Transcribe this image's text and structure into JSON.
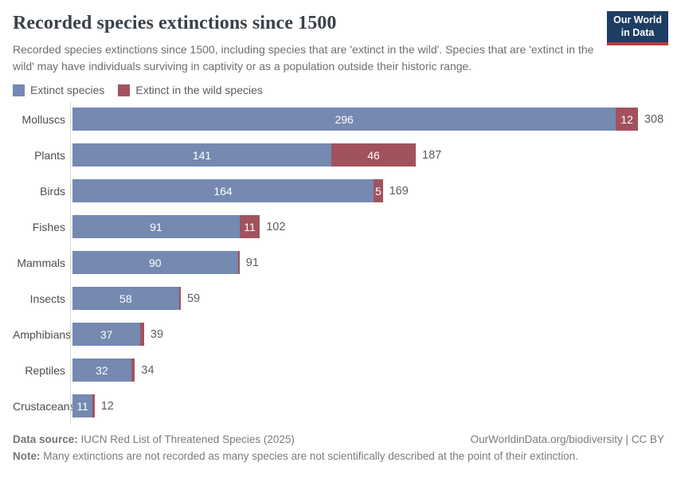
{
  "header": {
    "title": "Recorded species extinctions since 1500",
    "subtitle": "Recorded species extinctions since 1500, including species that are 'extinct in the wild'. Species that are 'extinct in the wild' may have individuals surviving in captivity or as a population outside their historic range.",
    "logo": {
      "line1": "Our World",
      "line2": "in Data"
    }
  },
  "legend": [
    {
      "label": "Extinct species",
      "color": "#7589b1"
    },
    {
      "label": "Extinct in the wild species",
      "color": "#a2525c"
    }
  ],
  "chart_data": {
    "type": "bar",
    "orientation": "horizontal",
    "stacked": true,
    "title": "Recorded species extinctions since 1500",
    "categories": [
      "Molluscs",
      "Plants",
      "Birds",
      "Fishes",
      "Mammals",
      "Insects",
      "Amphibians",
      "Reptiles",
      "Crustaceans"
    ],
    "series": [
      {
        "name": "Extinct species",
        "color": "#7589b1",
        "values": [
          296,
          141,
          164,
          91,
          90,
          58,
          37,
          32,
          11
        ]
      },
      {
        "name": "Extinct in the wild species",
        "color": "#a2525c",
        "values": [
          12,
          46,
          5,
          11,
          1,
          1,
          2,
          2,
          1
        ]
      }
    ],
    "totals": [
      308,
      187,
      169,
      102,
      91,
      59,
      39,
      34,
      12
    ],
    "xlim": [
      0,
      308
    ],
    "grid": false,
    "legend_position": "top",
    "value_labels": "inside-white, totals gray at bar end"
  },
  "footer": {
    "source_label": "Data source:",
    "source_text": " IUCN Red List of Threatened Species (2025)",
    "link_text": "OurWorldinData.org/biodiversity | CC BY",
    "note_label": "Note:",
    "note_text": " Many extinctions are not recorded as many species are not scientifically described at the point of their extinction."
  },
  "colors": {
    "extinct": "#7589b1",
    "extinct_in_wild": "#a2525c",
    "axis_line": "#d8d8d8",
    "logo_navy": "#1d3d63",
    "logo_red": "#c0393b"
  }
}
